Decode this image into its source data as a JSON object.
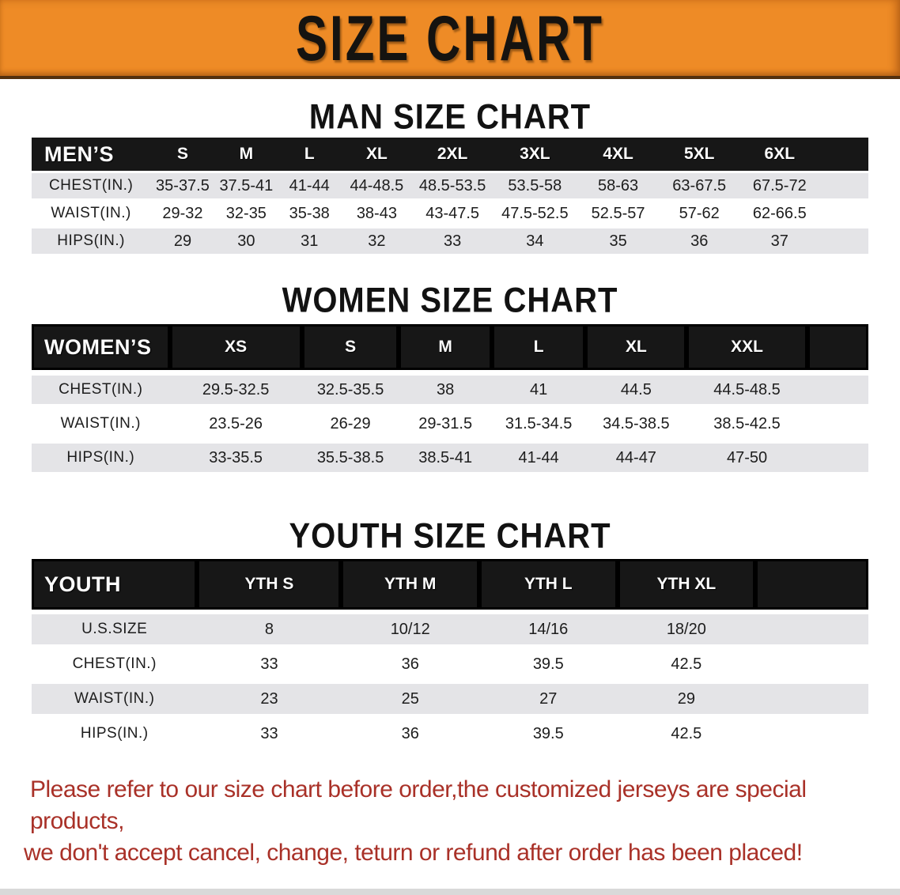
{
  "banner": {
    "title": "SIZE CHART",
    "bg_color": "#ee8b26"
  },
  "colors": {
    "header_bar": "#171717",
    "row_shaded": "#e4e4e7",
    "disclaimer_text": "#a93128"
  },
  "men": {
    "heading": "MAN SIZE CHART",
    "header": [
      "MEN’S",
      "S",
      "M",
      "L",
      "XL",
      "2XL",
      "3XL",
      "4XL",
      "5XL",
      "6XL"
    ],
    "rows": [
      [
        "CHEST(IN.)",
        "35-37.5",
        "37.5-41",
        "41-44",
        "44-48.5",
        "48.5-53.5",
        "53.5-58",
        "58-63",
        "63-67.5",
        "67.5-72"
      ],
      [
        "WAIST(IN.)",
        "29-32",
        "32-35",
        "35-38",
        "38-43",
        "43-47.5",
        "47.5-52.5",
        "52.5-57",
        "57-62",
        "62-66.5"
      ],
      [
        "HIPS(IN.)",
        "29",
        "30",
        "31",
        "32",
        "33",
        "34",
        "35",
        "36",
        "37"
      ]
    ]
  },
  "women": {
    "heading": "WOMEN SIZE CHART",
    "header": [
      "WOMEN’S",
      "XS",
      "S",
      "M",
      "L",
      "XL",
      "XXL"
    ],
    "rows": [
      [
        "CHEST(IN.)",
        "29.5-32.5",
        "32.5-35.5",
        "38",
        "41",
        "44.5",
        "44.5-48.5"
      ],
      [
        "WAIST(IN.)",
        "23.5-26",
        "26-29",
        "29-31.5",
        "31.5-34.5",
        "34.5-38.5",
        "38.5-42.5"
      ],
      [
        "HIPS(IN.)",
        "33-35.5",
        "35.5-38.5",
        "38.5-41",
        "41-44",
        "44-47",
        "47-50"
      ]
    ]
  },
  "youth": {
    "heading": "YOUTH SIZE CHART",
    "header": [
      "YOUTH",
      "YTH S",
      "YTH M",
      "YTH L",
      "YTH XL"
    ],
    "rows": [
      [
        "U.S.SIZE",
        "8",
        "10/12",
        "14/16",
        "18/20"
      ],
      [
        "CHEST(IN.)",
        "33",
        "36",
        "39.5",
        "42.5"
      ],
      [
        "WAIST(IN.)",
        "23",
        "25",
        "27",
        "29"
      ],
      [
        "HIPS(IN.)",
        "33",
        "36",
        "39.5",
        "42.5"
      ]
    ]
  },
  "disclaimer": {
    "line1": "Please refer to our size chart before order,the customized jerseys are special products,",
    "line2": "we don't accept cancel, change, teturn or refund after order has been placed!"
  }
}
